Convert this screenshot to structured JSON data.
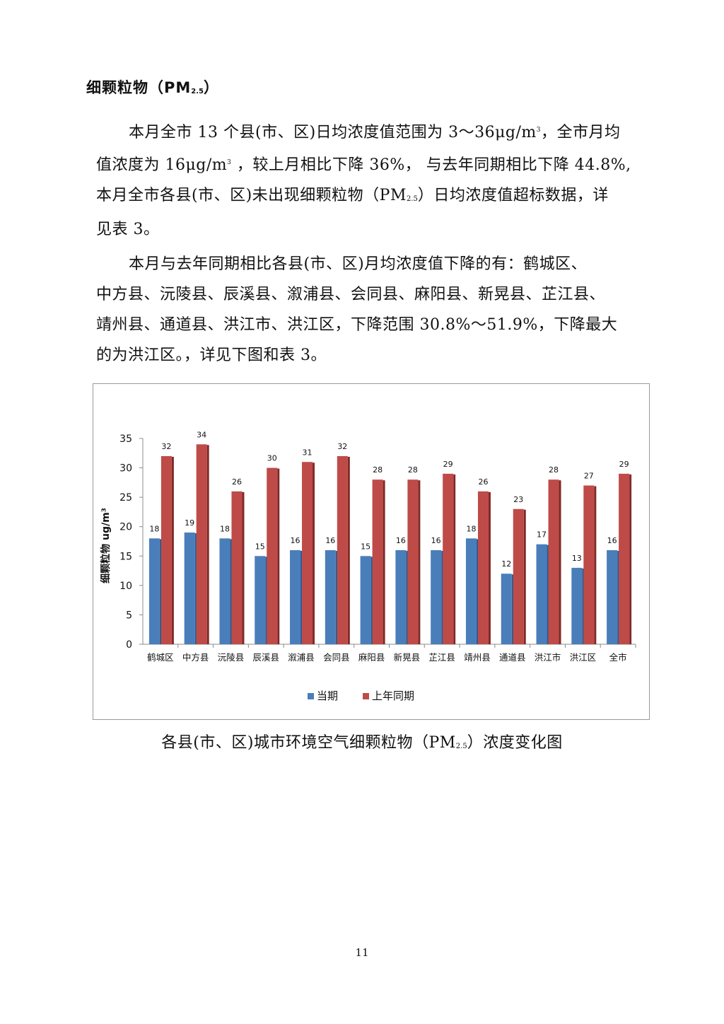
{
  "heading": {
    "text": "细颗粒物（PM",
    "sub": "2.5",
    "close": "）"
  },
  "paragraph1": {
    "lines": [
      {
        "a": "本月全市 13 个县(市、区)日均浓度值范围为 3～36μg/m",
        "sup": "3",
        "b": "，全市月均"
      },
      {
        "a": "值浓度为 16μg/m",
        "sup": "3",
        "b": " ，较上月相比下降 36%， 与去年同期相比下降 44.8%,"
      },
      {
        "a": "本月全市各县(市、区)未出现细颗粒物（PM",
        "sub": "2.5",
        "b": "）日均浓度值超标数据，详"
      },
      {
        "a": "见表 3。"
      }
    ]
  },
  "paragraph2": {
    "lines": [
      "本月与去年同期相比各县(市、区)月均浓度值下降的有：鹤城区、",
      "中方县、沅陵县、辰溪县、溆浦县、会同县、麻阳县、新晃县、芷江县、",
      "靖州县、通道县、洪江市、洪江区，下降范围 30.8%～51.9%，下降最大",
      "的为洪江区。，详见下图和表 3。"
    ]
  },
  "chart_data": {
    "type": "bar",
    "ylabel": "细颗粒物 ug/m³",
    "ylim": [
      0,
      35
    ],
    "yticks": [
      0,
      5,
      10,
      15,
      20,
      25,
      30,
      35
    ],
    "categories": [
      "鹤城区",
      "中方县",
      "沅陵县",
      "辰溪县",
      "溆浦县",
      "会同县",
      "麻阳县",
      "新晃县",
      "芷江县",
      "靖州县",
      "通道县",
      "洪江市",
      "洪江区",
      "全市"
    ],
    "series": [
      {
        "name": "当期",
        "color": "#4a7ebb",
        "values": [
          18,
          19,
          18,
          15,
          16,
          16,
          15,
          16,
          16,
          18,
          12,
          17,
          13,
          16
        ]
      },
      {
        "name": "上年同期",
        "color": "#be4b48",
        "values": [
          32,
          34,
          26,
          30,
          31,
          32,
          28,
          28,
          29,
          26,
          23,
          28,
          27,
          29
        ]
      }
    ],
    "legend": "bottom",
    "grid": false,
    "data_labels": true
  },
  "caption": {
    "a": "各县(市、区)城市环境空气细颗粒物（PM",
    "sub": "2.5",
    "b": "）浓度变化图"
  },
  "page_number": "11"
}
